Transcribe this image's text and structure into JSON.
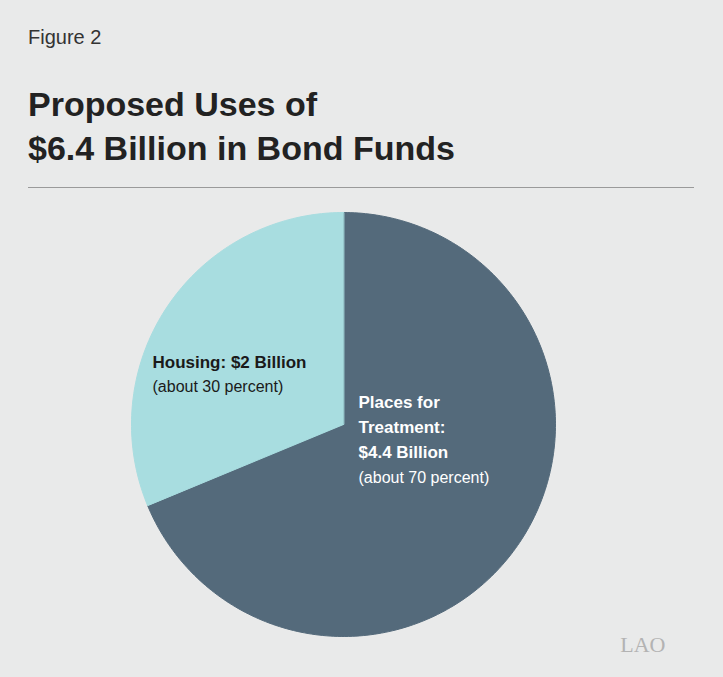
{
  "chart_data": {
    "type": "pie",
    "figure_label": "Figure 2",
    "title": "Proposed Uses of\n$6.4 Billion in Bond Funds",
    "categories": [
      "Places for Treatment",
      "Housing"
    ],
    "values": [
      4.4,
      2
    ],
    "value_labels": [
      "Places for Treatment: $4.4 Billion",
      "Housing: $2 Billion"
    ],
    "annotations": [
      "(about 70 percent)",
      "(about 30 percent)"
    ],
    "colors": [
      "#546a7b",
      "#a8dde0"
    ],
    "data_labels": true,
    "source": "LAO"
  }
}
